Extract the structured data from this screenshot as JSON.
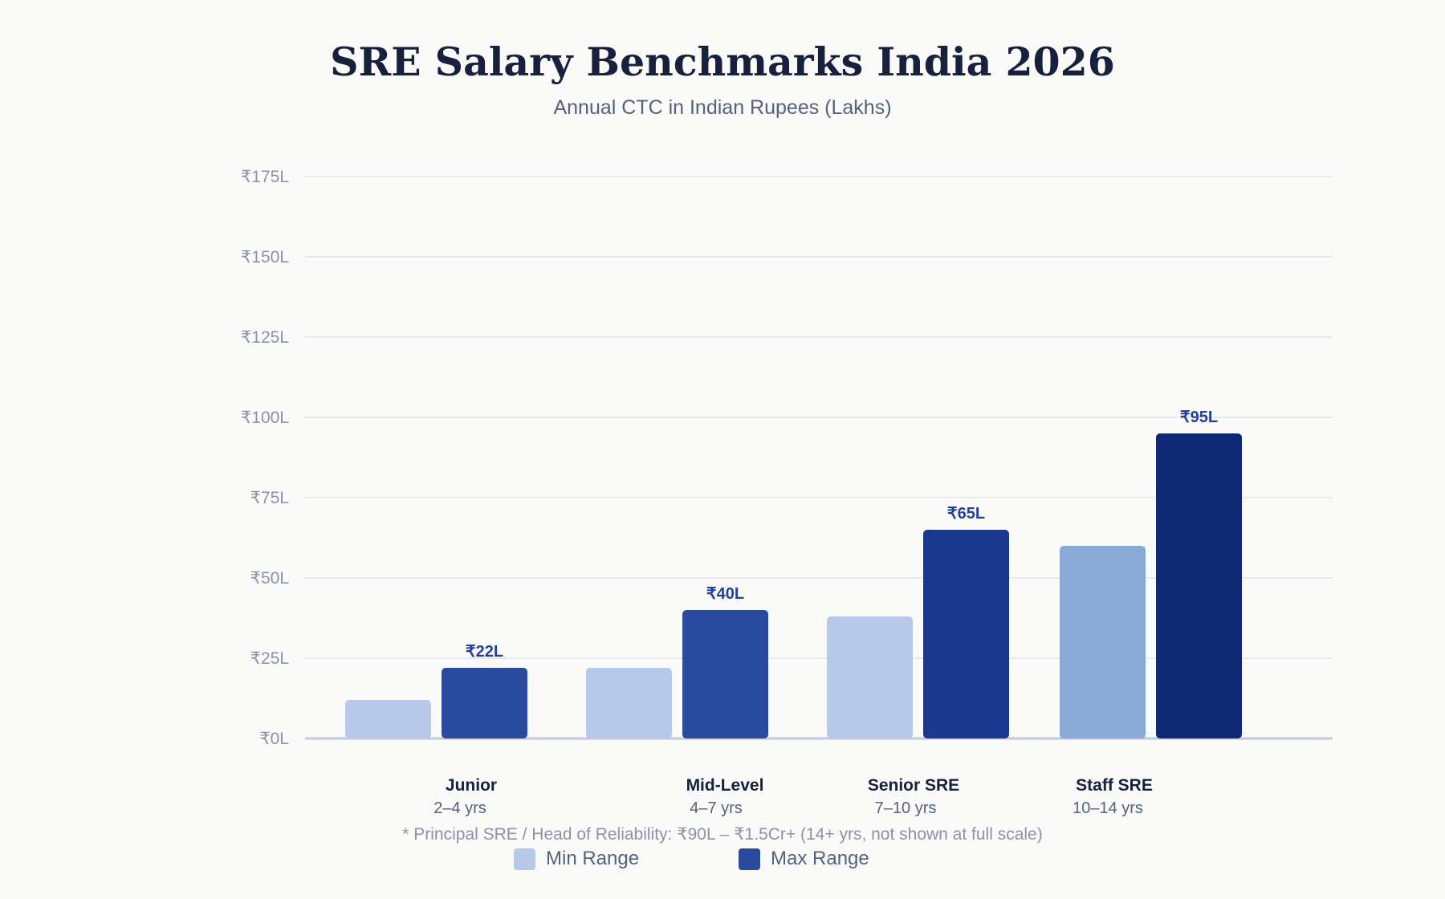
{
  "chart_data": {
    "type": "bar",
    "title": "SRE Salary Benchmarks India 2026",
    "subtitle": "Annual CTC in Indian Rupees (Lakhs)",
    "currency_symbol": "₹",
    "categories": [
      {
        "name": "Junior",
        "experience": "2–4 yrs"
      },
      {
        "name": "Mid-Level",
        "experience": "4–7 yrs"
      },
      {
        "name": "Senior SRE",
        "experience": "7–10 yrs"
      },
      {
        "name": "Staff SRE",
        "experience": "10–14 yrs"
      }
    ],
    "series": [
      {
        "name": "Min Range",
        "values": [
          12,
          22,
          38,
          60
        ],
        "colors": [
          "#b8c8e8",
          "#b8c8e8",
          "#b8c8e8",
          "#8aaad6"
        ]
      },
      {
        "name": "Max Range",
        "values": [
          22,
          40,
          65,
          95
        ],
        "colors": [
          "#2a4a9e",
          "#2a4a9e",
          "#1c378e",
          "#0f2874"
        ]
      }
    ],
    "data_labels": [
      "₹22L",
      "₹40L",
      "₹65L",
      "₹95L"
    ],
    "y_ticks": [
      "₹0L",
      "₹25L",
      "₹50L",
      "₹75L",
      "₹100L",
      "₹125L",
      "₹150L",
      "₹175L"
    ],
    "ylim": [
      0,
      175
    ],
    "grid": true,
    "legend_position": "bottom-center",
    "footnote": "* Principal SRE / Head of Reliability: ₹90L – ₹1.5Cr+ (14+ yrs, not shown at full scale)"
  },
  "legend": {
    "min_label": "Min Range",
    "min_color": "#b8c8e8",
    "max_label": "Max Range",
    "max_color": "#2a4a9e"
  }
}
